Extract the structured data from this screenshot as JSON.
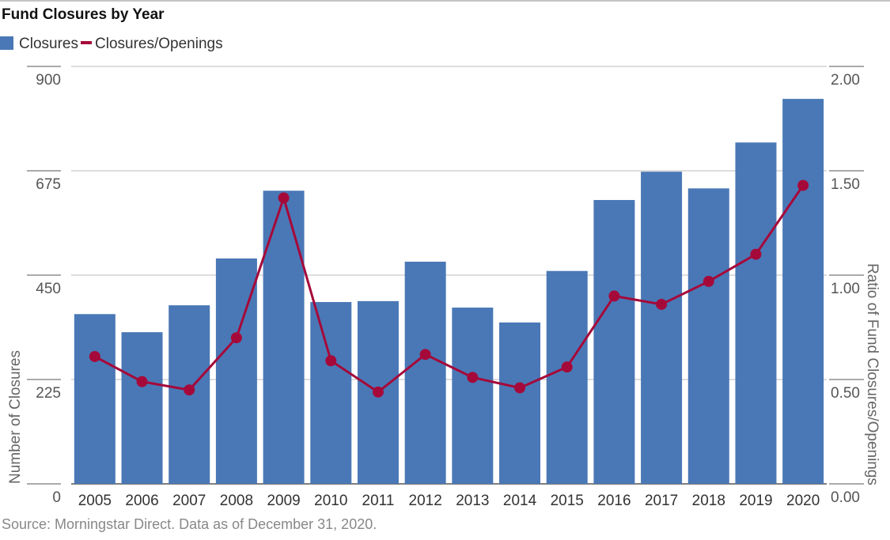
{
  "chart_data": {
    "type": "bar",
    "title": "Fund Closures by Year",
    "legend": [
      "Closures",
      "Closures/Openings"
    ],
    "legend_position": "top-left",
    "categories": [
      "2005",
      "2006",
      "2007",
      "2008",
      "2009",
      "2010",
      "2011",
      "2012",
      "2013",
      "2014",
      "2015",
      "2016",
      "2017",
      "2018",
      "2019",
      "2020"
    ],
    "series": [
      {
        "name": "Closures",
        "type": "bar",
        "axis": "left",
        "color": "#4a78b6",
        "values": [
          366,
          327,
          385,
          486,
          632,
          392,
          394,
          479,
          380,
          348,
          459,
          612,
          673,
          637,
          736,
          830
        ]
      },
      {
        "name": "Closures/Openings",
        "type": "line",
        "axis": "right",
        "color": "#a5093a",
        "values": [
          0.61,
          0.49,
          0.45,
          0.7,
          1.37,
          0.59,
          0.44,
          0.62,
          0.51,
          0.46,
          0.56,
          0.9,
          0.86,
          0.97,
          1.1,
          1.43
        ]
      }
    ],
    "ylabel": "Number of Closures",
    "y2label": "Ratio of Fund Closures/Openings",
    "ylim": [
      0,
      900
    ],
    "y2lim": [
      0,
      2
    ],
    "yticks": [
      "0",
      "225",
      "450",
      "675",
      "900"
    ],
    "y2ticks": [
      "0.00",
      "0.50",
      "1.00",
      "1.50",
      "2.00"
    ],
    "grid": true,
    "source": "Source: Morningstar Direct. Data as of December 31, 2020."
  }
}
